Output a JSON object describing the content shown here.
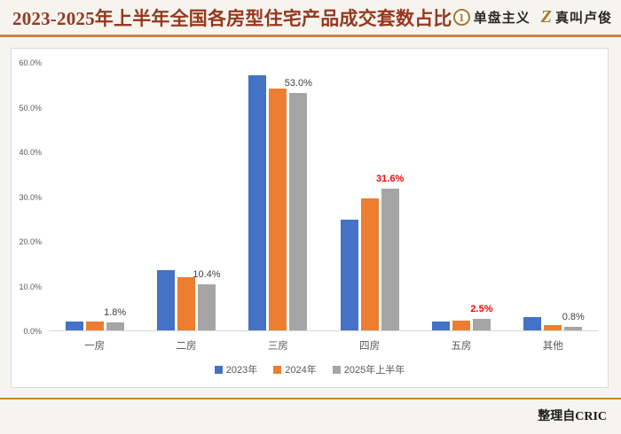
{
  "header": {
    "title": "2023-2025年上半年全国各房型住宅产品成交套数占比",
    "brand1": {
      "icon": "1",
      "label": "单盘主义"
    },
    "brand2": {
      "icon": "Z",
      "label": "真叫卢俊"
    }
  },
  "footer": {
    "source": "整理自CRIC"
  },
  "colors": {
    "title": "#96381F",
    "accent_line": "#C9854A",
    "highlight_label": "#FF0000",
    "series_2023": "#4472C4",
    "series_2024": "#ED7D31",
    "series_2025h1": "#A5A5A5"
  },
  "chart_data": {
    "type": "bar",
    "title": "2023-2025年上半年全国各房型住宅产品成交套数占比",
    "categories": [
      "一房",
      "二房",
      "三房",
      "四房",
      "五房",
      "其他"
    ],
    "series": [
      {
        "name": "2023年",
        "color": "#4472C4",
        "values": [
          2.0,
          13.5,
          57.0,
          24.8,
          2.0,
          3.0
        ]
      },
      {
        "name": "2024年",
        "color": "#ED7D31",
        "values": [
          2.0,
          11.8,
          54.0,
          29.5,
          2.1,
          1.2
        ]
      },
      {
        "name": "2025年上半年",
        "color": "#A5A5A5",
        "values": [
          1.8,
          10.4,
          53.0,
          31.6,
          2.5,
          0.8
        ]
      }
    ],
    "data_labels": [
      {
        "text": "1.8%",
        "highlight": false
      },
      {
        "text": "10.4%",
        "highlight": false
      },
      {
        "text": "53.0%",
        "highlight": false
      },
      {
        "text": "31.6%",
        "highlight": true
      },
      {
        "text": "2.5%",
        "highlight": true
      },
      {
        "text": "0.8%",
        "highlight": false
      }
    ],
    "y_ticks": [
      "60.0%",
      "50.0%",
      "40.0%",
      "30.0%",
      "20.0%",
      "10.0%",
      "0.0%"
    ],
    "ylim": [
      0,
      60
    ],
    "xlabel": "",
    "ylabel": "",
    "grid": false,
    "legend_position": "bottom"
  }
}
